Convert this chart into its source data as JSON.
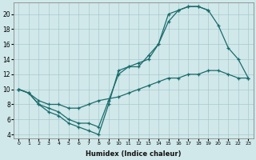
{
  "xlabel": "Humidex (Indice chaleur)",
  "bg_color": "#d0e8ea",
  "grid_color": "#aac8cc",
  "line_color": "#1a6b6b",
  "xlim": [
    -0.5,
    23.5
  ],
  "ylim": [
    3.5,
    21.5
  ],
  "xticks": [
    0,
    1,
    2,
    3,
    4,
    5,
    6,
    7,
    8,
    9,
    10,
    11,
    12,
    13,
    14,
    15,
    16,
    17,
    18,
    19,
    20,
    21,
    22,
    23
  ],
  "yticks": [
    4,
    6,
    8,
    10,
    12,
    14,
    16,
    18,
    20
  ],
  "line1_x": [
    0,
    1,
    2,
    3,
    4,
    5,
    6,
    7,
    8,
    9,
    10,
    11,
    12,
    13,
    14,
    15,
    16,
    17,
    18,
    19
  ],
  "line1_y": [
    10,
    9.5,
    8,
    7,
    6.5,
    5.5,
    5,
    4.5,
    4,
    8,
    12.5,
    13,
    13.5,
    14,
    16,
    20,
    20.5,
    21,
    21,
    20.5
  ],
  "line2_x": [
    0,
    1,
    2,
    3,
    4,
    5,
    6,
    7,
    8,
    10,
    11,
    12,
    13,
    14,
    15,
    16,
    17,
    18,
    19,
    20,
    21,
    22,
    23
  ],
  "line2_y": [
    10,
    9.5,
    8.5,
    8,
    8,
    7.5,
    7.5,
    8,
    8.5,
    9,
    9.5,
    10,
    10.5,
    11,
    11.5,
    11.5,
    12,
    12,
    12.5,
    12.5,
    12,
    11.5,
    11.5
  ],
  "line3_x": [
    0,
    1,
    2,
    3,
    4,
    5,
    6,
    7,
    8,
    9,
    10,
    11,
    12,
    13,
    14,
    15,
    16,
    17,
    18,
    19,
    20,
    21,
    22,
    23
  ],
  "line3_y": [
    10,
    9.5,
    8,
    7.5,
    7,
    6,
    5.5,
    5.5,
    5,
    8.5,
    12,
    13,
    13,
    14.5,
    16,
    19,
    20.5,
    21,
    21,
    20.5,
    18.5,
    15.5,
    14,
    11.5
  ]
}
